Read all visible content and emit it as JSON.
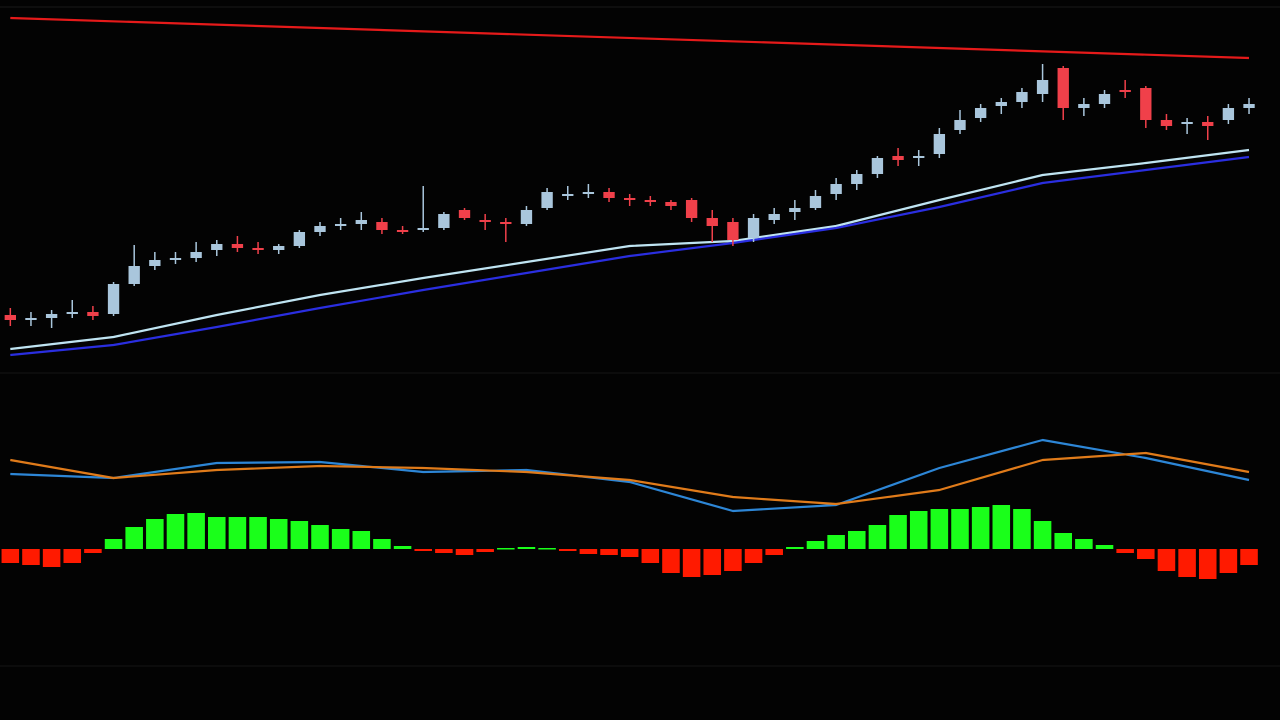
{
  "chart_data": [
    {
      "type": "candlestick",
      "xlim": [
        -0.5,
        61.5
      ],
      "ylim": [
        0,
        370
      ],
      "up_color": "#a9c6dc",
      "down_color": "#f0404a",
      "open": [
        55,
        50,
        52,
        56,
        58,
        56,
        86,
        104,
        110,
        112,
        120,
        126,
        122,
        120,
        124,
        138,
        144,
        146,
        148,
        140,
        140,
        142,
        160,
        150,
        148,
        146,
        162,
        176,
        176,
        178,
        172,
        170,
        168,
        170,
        152,
        148,
        132,
        150,
        158,
        162,
        176,
        186,
        196,
        214,
        212,
        216,
        240,
        252,
        264,
        268,
        276,
        302,
        262,
        266,
        280,
        282,
        250,
        246,
        248,
        250,
        262
      ],
      "high": [
        62,
        58,
        60,
        70,
        64,
        88,
        125,
        118,
        118,
        128,
        130,
        134,
        128,
        126,
        140,
        148,
        152,
        158,
        152,
        144,
        184,
        158,
        162,
        156,
        152,
        164,
        182,
        184,
        186,
        182,
        176,
        174,
        170,
        172,
        160,
        152,
        156,
        162,
        170,
        180,
        192,
        200,
        214,
        222,
        220,
        242,
        260,
        266,
        272,
        282,
        306,
        304,
        272,
        280,
        290,
        284,
        256,
        252,
        254,
        266,
        272
      ],
      "low": [
        44,
        44,
        42,
        52,
        50,
        54,
        84,
        100,
        106,
        108,
        114,
        118,
        116,
        116,
        122,
        134,
        140,
        140,
        136,
        136,
        138,
        140,
        150,
        140,
        128,
        144,
        160,
        170,
        172,
        168,
        164,
        164,
        160,
        148,
        128,
        124,
        128,
        146,
        150,
        160,
        170,
        180,
        192,
        204,
        204,
        212,
        236,
        248,
        256,
        262,
        268,
        250,
        254,
        262,
        272,
        242,
        240,
        236,
        230,
        246,
        256
      ],
      "close": [
        50,
        52,
        56,
        58,
        54,
        86,
        104,
        110,
        112,
        118,
        126,
        122,
        120,
        124,
        138,
        144,
        146,
        150,
        140,
        138,
        142,
        156,
        152,
        148,
        146,
        160,
        178,
        176,
        178,
        172,
        170,
        168,
        164,
        152,
        144,
        130,
        152,
        156,
        162,
        174,
        186,
        196,
        212,
        210,
        214,
        236,
        250,
        262,
        268,
        278,
        290,
        262,
        266,
        276,
        278,
        250,
        244,
        248,
        244,
        262,
        266
      ],
      "lines": [
        {
          "color": "#e51a1a",
          "x": [
            0,
            60
          ],
          "values": [
            352,
            312
          ]
        },
        {
          "color": "#bfe4f2",
          "x": [
            0,
            5,
            10,
            15,
            20,
            25,
            30,
            35,
            40,
            45,
            50,
            55,
            60
          ],
          "values": [
            21,
            33,
            55,
            75,
            92,
            108,
            124,
            129,
            144,
            170,
            195,
            207,
            220
          ]
        },
        {
          "color": "#2a2ee0",
          "x": [
            0,
            5,
            10,
            15,
            20,
            25,
            30,
            35,
            40,
            45,
            50,
            55,
            60
          ],
          "values": [
            15,
            25,
            43,
            62,
            80,
            97,
            114,
            127,
            142,
            163,
            187,
            200,
            213
          ]
        }
      ]
    },
    {
      "type": "macd",
      "xlim": [
        -0.5,
        61.5
      ],
      "ylim": [
        -150,
        170
      ],
      "up_color": "#1aff1a",
      "down_color": "#ff1a00",
      "histogram": [
        -14,
        -16,
        -18,
        -14,
        -4,
        10,
        22,
        30,
        35,
        36,
        32,
        32,
        32,
        30,
        28,
        24,
        20,
        18,
        10,
        3,
        -2,
        -4,
        -6,
        -3,
        1,
        2,
        1,
        -2,
        -5,
        -6,
        -8,
        -14,
        -24,
        -28,
        -26,
        -22,
        -14,
        -6,
        2,
        8,
        14,
        18,
        24,
        34,
        38,
        40,
        40,
        42,
        44,
        40,
        28,
        16,
        10,
        4,
        -4,
        -10,
        -22,
        -28,
        -30,
        -24,
        -16
      ],
      "lines": [
        {
          "color": "#2d86d6",
          "x": [
            0,
            5,
            10,
            15,
            20,
            25,
            30,
            35,
            40,
            45,
            50,
            55,
            60
          ],
          "values": [
            75,
            71,
            86,
            87,
            77,
            79,
            67,
            38,
            44,
            81,
            109,
            91,
            69
          ]
        },
        {
          "color": "#e07b1a",
          "x": [
            0,
            5,
            10,
            15,
            20,
            25,
            30,
            35,
            40,
            45,
            50,
            55,
            60
          ],
          "values": [
            89,
            71,
            79,
            83,
            81,
            77,
            69,
            52,
            45,
            59,
            89,
            96,
            77
          ]
        }
      ]
    }
  ]
}
